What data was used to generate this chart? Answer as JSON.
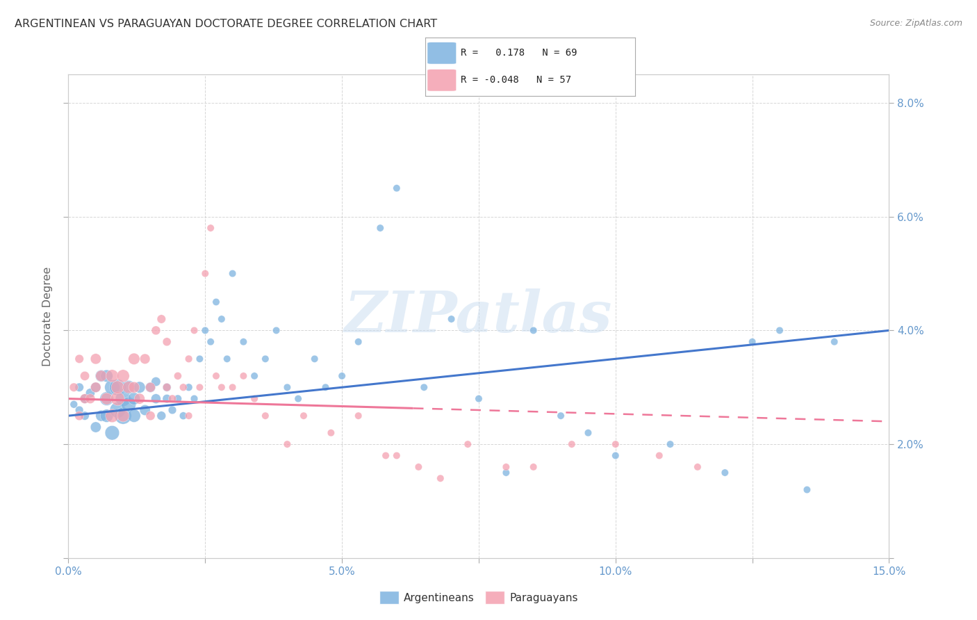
{
  "title": "ARGENTINEAN VS PARAGUAYAN DOCTORATE DEGREE CORRELATION CHART",
  "source": "Source: ZipAtlas.com",
  "ylabel": "Doctorate Degree",
  "watermark": "ZIPatlas",
  "xlim": [
    0.0,
    0.15
  ],
  "ylim": [
    0.0,
    0.085
  ],
  "blue_color": "#7EB3E0",
  "pink_color": "#F4A0B0",
  "trend_blue": "#4477CC",
  "trend_pink": "#EE7799",
  "background": "#FFFFFF",
  "grid_color": "#CCCCCC",
  "argentinean_R": 0.178,
  "argentinean_N": 69,
  "paraguayan_R": -0.048,
  "paraguayan_N": 57,
  "arg_x": [
    0.001,
    0.002,
    0.002,
    0.003,
    0.003,
    0.004,
    0.005,
    0.005,
    0.006,
    0.006,
    0.007,
    0.007,
    0.007,
    0.008,
    0.008,
    0.009,
    0.009,
    0.01,
    0.01,
    0.011,
    0.011,
    0.012,
    0.012,
    0.013,
    0.014,
    0.015,
    0.016,
    0.016,
    0.017,
    0.018,
    0.018,
    0.019,
    0.02,
    0.021,
    0.022,
    0.023,
    0.024,
    0.025,
    0.026,
    0.027,
    0.028,
    0.029,
    0.03,
    0.032,
    0.034,
    0.036,
    0.038,
    0.04,
    0.042,
    0.045,
    0.047,
    0.05,
    0.053,
    0.057,
    0.06,
    0.065,
    0.07,
    0.075,
    0.08,
    0.085,
    0.09,
    0.095,
    0.1,
    0.11,
    0.12,
    0.125,
    0.13,
    0.135,
    0.14
  ],
  "arg_y": [
    0.027,
    0.026,
    0.03,
    0.025,
    0.028,
    0.029,
    0.023,
    0.03,
    0.025,
    0.032,
    0.025,
    0.028,
    0.032,
    0.022,
    0.03,
    0.026,
    0.03,
    0.025,
    0.028,
    0.027,
    0.03,
    0.025,
    0.028,
    0.03,
    0.026,
    0.03,
    0.028,
    0.031,
    0.025,
    0.028,
    0.03,
    0.026,
    0.028,
    0.025,
    0.03,
    0.028,
    0.035,
    0.04,
    0.038,
    0.045,
    0.042,
    0.035,
    0.05,
    0.038,
    0.032,
    0.035,
    0.04,
    0.03,
    0.028,
    0.035,
    0.03,
    0.032,
    0.038,
    0.058,
    0.065,
    0.03,
    0.042,
    0.028,
    0.015,
    0.04,
    0.025,
    0.022,
    0.018,
    0.02,
    0.015,
    0.038,
    0.04,
    0.012,
    0.038
  ],
  "arg_s": [
    60,
    70,
    80,
    80,
    90,
    90,
    120,
    110,
    130,
    150,
    180,
    200,
    160,
    220,
    240,
    260,
    280,
    300,
    250,
    230,
    200,
    180,
    160,
    140,
    120,
    110,
    100,
    90,
    85,
    80,
    75,
    70,
    65,
    62,
    60,
    58,
    55,
    55,
    55,
    55,
    55,
    55,
    55,
    55,
    55,
    55,
    55,
    55,
    55,
    55,
    55,
    55,
    55,
    55,
    55,
    55,
    55,
    55,
    55,
    55,
    55,
    55,
    55,
    55,
    55,
    55,
    55,
    55,
    55
  ],
  "par_x": [
    0.001,
    0.002,
    0.002,
    0.003,
    0.003,
    0.004,
    0.005,
    0.005,
    0.006,
    0.007,
    0.008,
    0.008,
    0.009,
    0.009,
    0.01,
    0.01,
    0.011,
    0.012,
    0.012,
    0.013,
    0.014,
    0.015,
    0.015,
    0.016,
    0.017,
    0.018,
    0.018,
    0.019,
    0.02,
    0.021,
    0.022,
    0.022,
    0.023,
    0.024,
    0.025,
    0.026,
    0.027,
    0.028,
    0.03,
    0.032,
    0.034,
    0.036,
    0.04,
    0.043,
    0.048,
    0.053,
    0.058,
    0.06,
    0.064,
    0.068,
    0.073,
    0.08,
    0.085,
    0.092,
    0.1,
    0.108,
    0.115
  ],
  "par_y": [
    0.03,
    0.035,
    0.025,
    0.028,
    0.032,
    0.028,
    0.03,
    0.035,
    0.032,
    0.028,
    0.032,
    0.025,
    0.028,
    0.03,
    0.032,
    0.025,
    0.03,
    0.035,
    0.03,
    0.028,
    0.035,
    0.03,
    0.025,
    0.04,
    0.042,
    0.038,
    0.03,
    0.028,
    0.032,
    0.03,
    0.035,
    0.025,
    0.04,
    0.03,
    0.05,
    0.058,
    0.032,
    0.03,
    0.03,
    0.032,
    0.028,
    0.025,
    0.02,
    0.025,
    0.022,
    0.025,
    0.018,
    0.018,
    0.016,
    0.014,
    0.02,
    0.016,
    0.016,
    0.02,
    0.02,
    0.018,
    0.016
  ],
  "par_s": [
    80,
    80,
    90,
    100,
    90,
    100,
    110,
    120,
    130,
    150,
    170,
    190,
    200,
    180,
    170,
    160,
    150,
    140,
    130,
    120,
    110,
    100,
    90,
    85,
    80,
    75,
    70,
    65,
    62,
    60,
    58,
    56,
    55,
    55,
    55,
    55,
    55,
    55,
    55,
    55,
    55,
    55,
    55,
    55,
    55,
    55,
    55,
    55,
    55,
    55,
    55,
    55,
    55,
    55,
    55,
    55,
    55
  ]
}
